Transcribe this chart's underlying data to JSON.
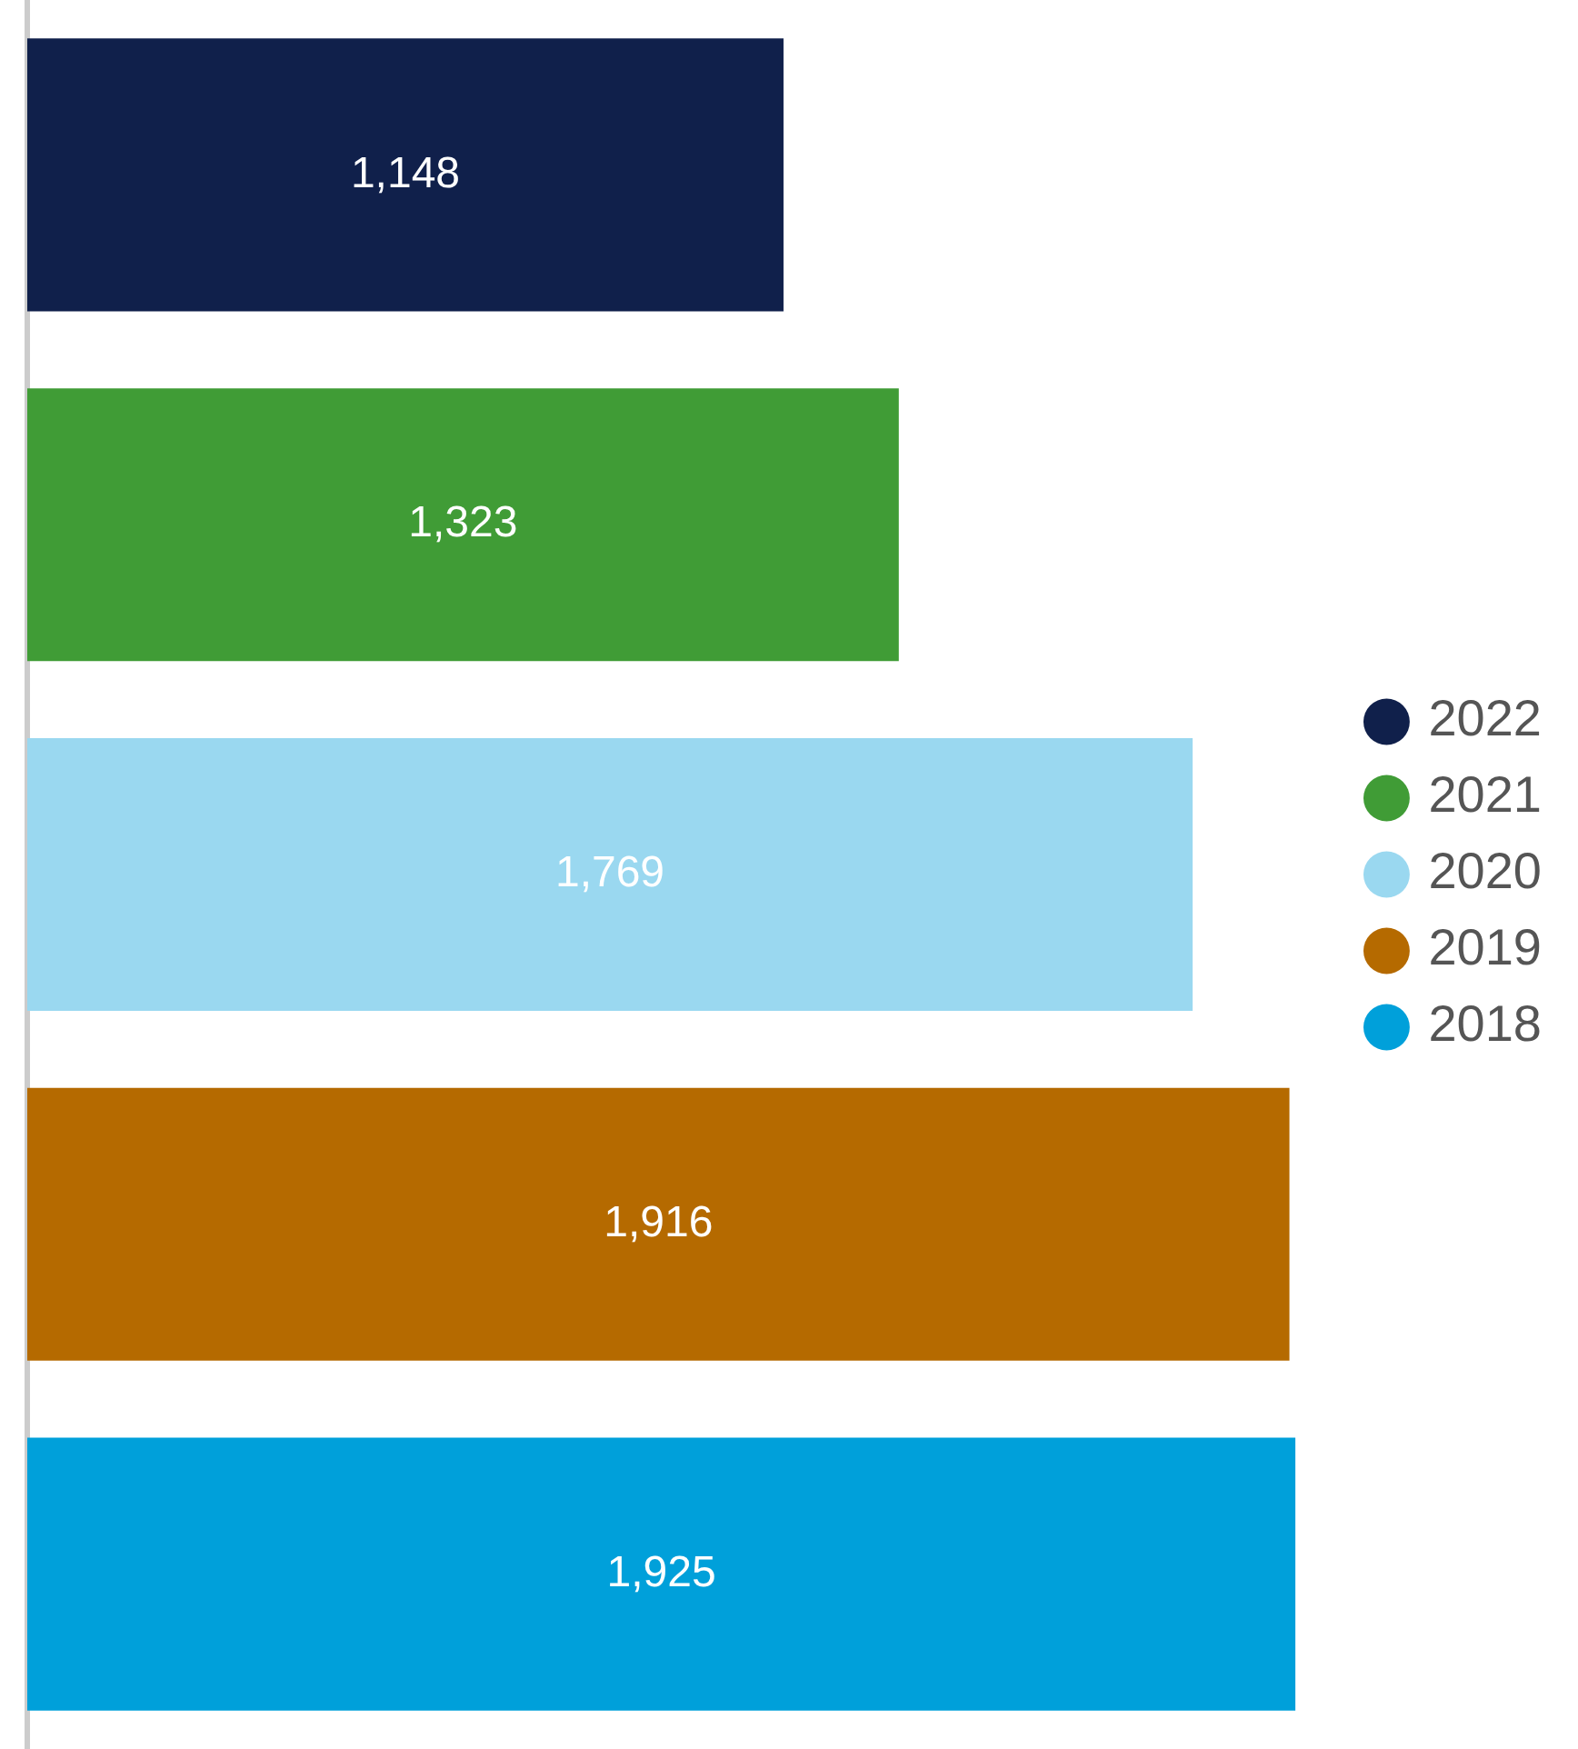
{
  "chart_data": {
    "type": "bar",
    "orientation": "horizontal",
    "stacked": true,
    "categories": [
      null,
      null,
      null,
      null,
      null
    ],
    "series": [
      {
        "name": "2022",
        "color": "#10204b",
        "values": [
          1148,
          null,
          null,
          null,
          null
        ],
        "value_labels": [
          "1,148",
          null,
          null,
          null,
          null
        ]
      },
      {
        "name": "2021",
        "color": "#409c36",
        "values": [
          null,
          1323,
          null,
          null,
          null
        ],
        "value_labels": [
          null,
          "1,323",
          null,
          null,
          null
        ]
      },
      {
        "name": "2020",
        "color": "#9ad8f0",
        "values": [
          null,
          null,
          1769,
          null,
          null
        ],
        "value_labels": [
          null,
          null,
          "1,769",
          null,
          null
        ]
      },
      {
        "name": "2019",
        "color": "#b56a00",
        "values": [
          null,
          null,
          null,
          1916,
          null
        ],
        "value_labels": [
          null,
          null,
          null,
          "1,916",
          null
        ]
      },
      {
        "name": "2018",
        "color": "#00a0da",
        "values": [
          null,
          null,
          null,
          null,
          1925
        ],
        "value_labels": [
          null,
          null,
          null,
          null,
          "1,925"
        ]
      }
    ],
    "legend": "right",
    "grid": false,
    "marker": "circle"
  }
}
